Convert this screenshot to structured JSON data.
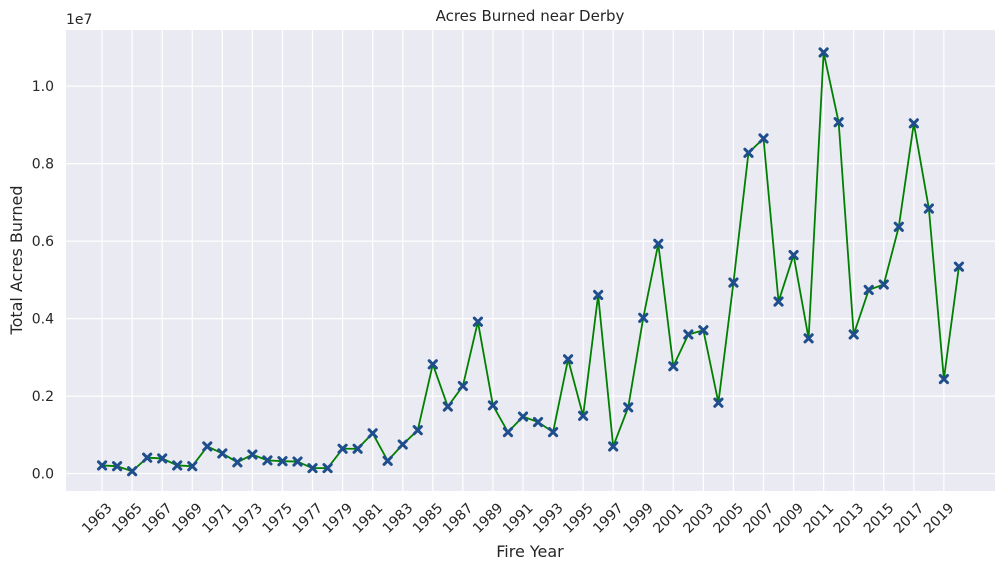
{
  "chart_data": {
    "type": "line",
    "title": "Acres Burned near Derby",
    "xlabel": "Fire Year",
    "ylabel": "Total Acres Burned",
    "y_multiplier_label": "1e7",
    "ylim": [
      -450000,
      11450000
    ],
    "xlim": [
      1960.6,
      2022.4
    ],
    "grid": true,
    "background_color": "#eaeaf2",
    "line_color": "#008000",
    "marker_color": "#1f4e8c",
    "marker": "x",
    "y_ticks": [
      0,
      2000000,
      4000000,
      6000000,
      8000000,
      10000000
    ],
    "y_tick_labels": [
      "0.0",
      "0.2",
      "0.4",
      "0.6",
      "0.8",
      "1.0"
    ],
    "x_ticks": [
      1963,
      1965,
      1967,
      1969,
      1971,
      1973,
      1975,
      1977,
      1979,
      1981,
      1983,
      1985,
      1987,
      1989,
      1991,
      1993,
      1995,
      1997,
      1999,
      2001,
      2003,
      2005,
      2007,
      2009,
      2011,
      2013,
      2015,
      2017,
      2019
    ],
    "x_tick_labels": [
      "1963",
      "1965",
      "1967",
      "1969",
      "1971",
      "1973",
      "1975",
      "1977",
      "1979",
      "1981",
      "1983",
      "1985",
      "1987",
      "1989",
      "1991",
      "1993",
      "1995",
      "1997",
      "1999",
      "2001",
      "2003",
      "2005",
      "2007",
      "2009",
      "2011",
      "2013",
      "2015",
      "2017",
      "2019"
    ],
    "x": [
      1963,
      1964,
      1965,
      1966,
      1967,
      1968,
      1969,
      1970,
      1971,
      1972,
      1973,
      1974,
      1975,
      1976,
      1977,
      1978,
      1979,
      1980,
      1981,
      1982,
      1983,
      1984,
      1985,
      1986,
      1987,
      1988,
      1989,
      1990,
      1991,
      1992,
      1993,
      1994,
      1995,
      1996,
      1997,
      1998,
      1999,
      2000,
      2001,
      2002,
      2003,
      2004,
      2005,
      2006,
      2007,
      2008,
      2009,
      2010,
      2011,
      2012,
      2013,
      2014,
      2015,
      2016,
      2017,
      2018,
      2019,
      2020
    ],
    "y": [
      210000,
      190000,
      60000,
      410000,
      390000,
      210000,
      190000,
      700000,
      520000,
      290000,
      490000,
      340000,
      320000,
      310000,
      140000,
      140000,
      640000,
      640000,
      1040000,
      330000,
      750000,
      1120000,
      2820000,
      1730000,
      2260000,
      3920000,
      1760000,
      1070000,
      1470000,
      1330000,
      1070000,
      2950000,
      1490000,
      4610000,
      700000,
      1710000,
      4020000,
      5930000,
      2770000,
      3590000,
      3700000,
      1830000,
      4930000,
      8280000,
      8650000,
      4440000,
      5640000,
      3490000,
      10870000,
      9070000,
      3590000,
      4740000,
      4880000,
      6370000,
      9040000,
      6840000,
      2440000,
      5340000
    ]
  }
}
